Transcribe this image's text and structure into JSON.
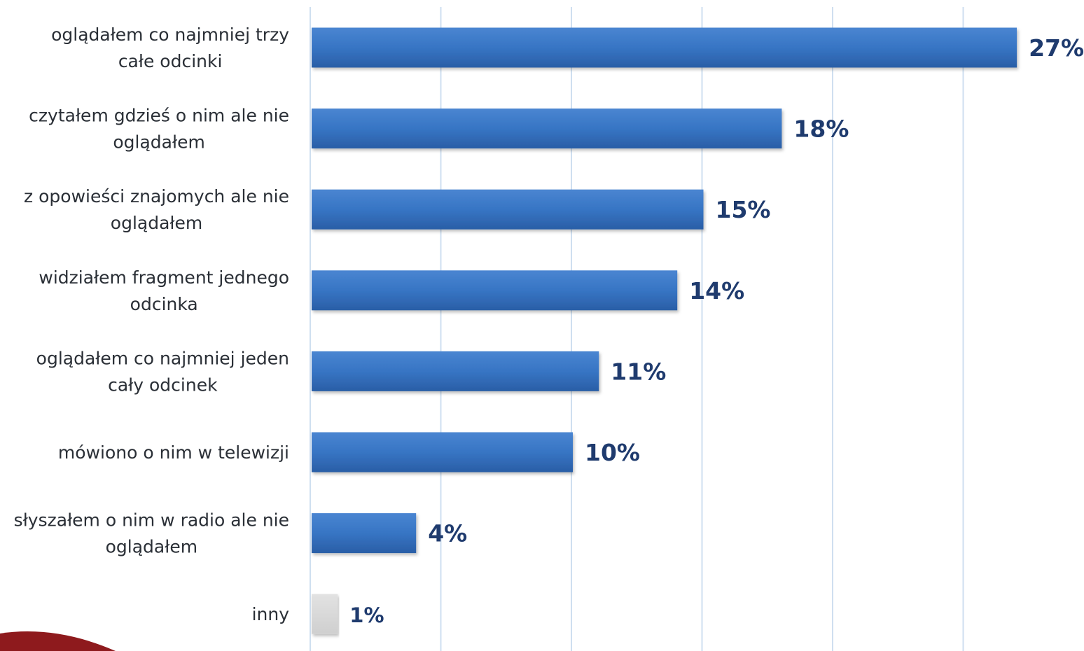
{
  "chart_data": {
    "type": "bar",
    "orientation": "horizontal",
    "title": "",
    "xlabel": "",
    "ylabel": "",
    "xlim": [
      0,
      27
    ],
    "grid": true,
    "legend": "none",
    "categories": [
      [
        "oglądałem co najmniej trzy",
        "całe odcinki"
      ],
      [
        "czytałem gdzieś o nim ale nie",
        "oglądałem"
      ],
      [
        "z opowieści znajomych ale nie",
        "oglądałem"
      ],
      [
        "widziałem fragment jednego",
        "odcinka"
      ],
      [
        "oglądałem co najmniej jeden",
        "cały odcinek"
      ],
      [
        "mówiono o nim w telewizji"
      ],
      [
        "słyszałem o nim w radio ale nie",
        "oglądałem"
      ],
      [
        "inny"
      ]
    ],
    "values": [
      27,
      18,
      15,
      14,
      11,
      10,
      4,
      1
    ],
    "value_labels": [
      "27%",
      "18%",
      "15%",
      "14%",
      "11%",
      "10%",
      "4%",
      "1%"
    ],
    "colors": {
      "bar": "#2f69b5",
      "bar_highlight": "#4a85d1",
      "bar_other": "#d9d9d9",
      "value_text": "#1f3b6e",
      "grid": "#cfdff0",
      "corner_shape": "#8e1a1d"
    }
  }
}
